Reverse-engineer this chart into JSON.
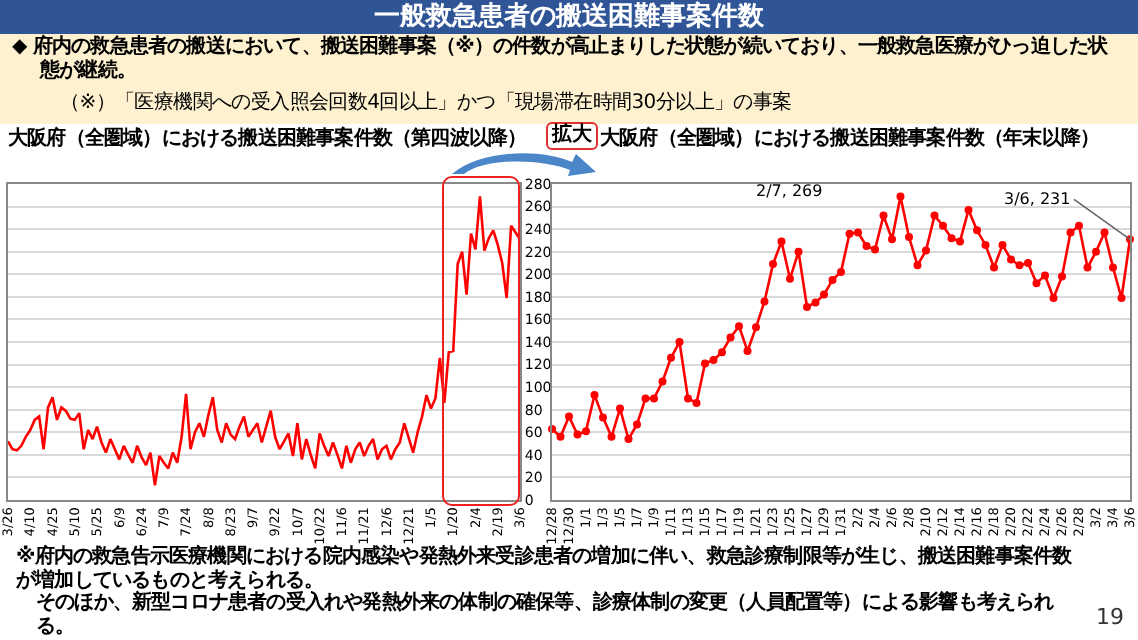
{
  "chart_data": [
    {
      "type": "line",
      "title": "大阪府（全圏域）における搬送困難事案件数（第四波以降）",
      "categories": [
        "3/26",
        null,
        null,
        null,
        null,
        "4/10",
        null,
        null,
        null,
        null,
        "4/25",
        null,
        null,
        null,
        null,
        "5/10",
        null,
        null,
        null,
        null,
        "5/25",
        null,
        null,
        null,
        null,
        "6/9",
        null,
        null,
        null,
        null,
        "6/24",
        null,
        null,
        null,
        null,
        "7/9",
        null,
        null,
        null,
        null,
        "7/24",
        null,
        null,
        null,
        null,
        "8/8",
        null,
        null,
        null,
        null,
        "8/23",
        null,
        null,
        null,
        null,
        "9/7",
        null,
        null,
        null,
        null,
        "9/22",
        null,
        null,
        null,
        null,
        "10/7",
        null,
        null,
        null,
        null,
        "10/22",
        null,
        null,
        null,
        null,
        "11/6",
        null,
        null,
        null,
        null,
        "11/21",
        null,
        null,
        null,
        null,
        "12/6",
        null,
        null,
        null,
        null,
        "12/21",
        null,
        null,
        null,
        null,
        "1/5",
        null,
        null,
        null,
        null,
        "1/20",
        null,
        null,
        null,
        null,
        "2/4",
        null,
        null,
        null,
        null,
        "2/19",
        null,
        null,
        null,
        null,
        "3/6"
      ],
      "values": [
        52,
        45,
        44,
        48,
        56,
        62,
        71,
        74,
        45,
        82,
        91,
        71,
        82,
        79,
        72,
        71,
        77,
        45,
        62,
        54,
        65,
        51,
        42,
        54,
        45,
        36,
        48,
        40,
        33,
        48,
        38,
        31,
        42,
        13,
        39,
        33,
        28,
        42,
        33,
        56,
        94,
        45,
        60,
        68,
        56,
        75,
        91,
        62,
        51,
        68,
        58,
        54,
        65,
        74,
        56,
        62,
        68,
        51,
        65,
        79,
        56,
        45,
        52,
        59,
        39,
        68,
        36,
        54,
        40,
        28,
        59,
        48,
        39,
        51,
        40,
        28,
        48,
        33,
        45,
        51,
        39,
        48,
        54,
        36,
        45,
        48,
        36,
        45,
        51,
        68,
        55,
        42,
        60,
        74,
        93,
        81,
        90,
        126,
        86,
        131,
        132,
        209,
        220,
        182,
        236,
        222,
        269,
        221,
        232,
        239,
        226,
        210,
        179,
        243,
        237,
        231
      ],
      "color": "#ff0000",
      "marker": "none",
      "line_style": "solid",
      "grid": "y",
      "ylim": [
        0,
        280
      ],
      "yticks": [
        0,
        20,
        40,
        60,
        80,
        100,
        120,
        140,
        160,
        180,
        200,
        220,
        240,
        260,
        280
      ],
      "annotations": [
        "一般救急患者の搬送困難事案件数",
        "◆ 府内の救急患者の搬送において、搬送困難事案（※）の件数が高止まりした状態が続いており、一般救急医療がひっ迫した状態が継続。",
        "（※）「医療機関への受入照会回数4回以上」かつ「現場滞在時間30分以上」の事案"
      ]
    },
    {
      "type": "line",
      "title": "大阪府（全圏域）における搬送困難事案件数（年末以降）",
      "categories": [
        "12/28",
        null,
        "12/30",
        null,
        "1/1",
        null,
        "1/3",
        null,
        "1/5",
        null,
        "1/7",
        null,
        "1/9",
        null,
        "1/11",
        null,
        "1/13",
        null,
        "1/15",
        null,
        "1/17",
        null,
        "1/19",
        null,
        "1/21",
        null,
        "1/23",
        null,
        "1/25",
        null,
        "1/27",
        null,
        "1/29",
        null,
        "1/31",
        null,
        "2/2",
        null,
        "2/4",
        null,
        "2/6",
        null,
        "2/8",
        null,
        "2/10",
        null,
        "2/12",
        null,
        "2/14",
        null,
        "2/16",
        null,
        "2/18",
        null,
        "2/20",
        null,
        "2/22",
        null,
        "2/24",
        null,
        "2/26",
        null,
        "2/28",
        null,
        "3/2",
        null,
        "3/4",
        null,
        "3/6"
      ],
      "values": [
        63,
        56,
        74,
        58,
        61,
        93,
        73,
        56,
        81,
        54,
        67,
        90,
        90,
        105,
        126,
        140,
        90,
        86,
        121,
        124,
        131,
        144,
        154,
        132,
        153,
        176,
        209,
        229,
        196,
        220,
        171,
        175,
        182,
        195,
        202,
        236,
        237,
        225,
        222,
        252,
        231,
        269,
        233,
        208,
        221,
        252,
        243,
        232,
        229,
        257,
        239,
        226,
        206,
        226,
        213,
        208,
        210,
        192,
        199,
        179,
        198,
        237,
        243,
        206,
        220,
        237,
        206,
        179,
        231
      ],
      "color": "#ff0000",
      "marker": "circle",
      "line_style": "solid",
      "grid": "y",
      "tick_labels": "x",
      "ylim": [
        0,
        280
      ],
      "yticks": [
        0,
        20,
        40,
        60,
        80,
        100,
        120,
        140,
        160,
        180,
        200,
        220,
        240,
        260,
        280
      ],
      "annotations": [
        "2/7, 269",
        {
          "text": "3/6, 231",
          "x": "3/6",
          "y": 231
        },
        "拡大",
        "※府内の救急告示医療機関における院内感染や発熱外来受診患者の増加に伴い、救急診療制限等が生じ、搬送困難事案件数が増加しているものと考えられる。",
        "そのほか、新型コロナ患者の受入れや発熱外来の体制の確保等、診療体制の変更（人員配置等）による影響も考えられる。",
        "19"
      ]
    }
  ]
}
